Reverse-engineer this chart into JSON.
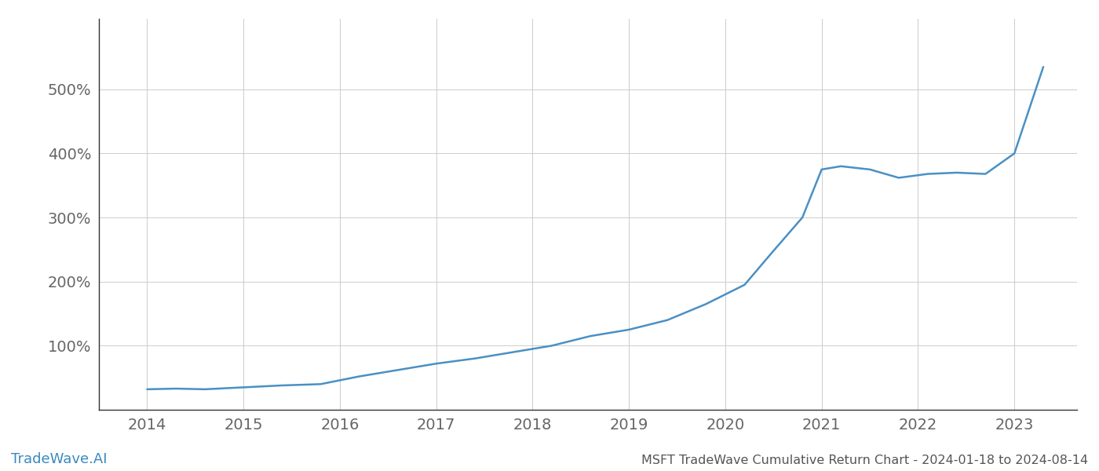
{
  "title": "MSFT TradeWave Cumulative Return Chart - 2024-01-18 to 2024-08-14",
  "watermark": "TradeWave.AI",
  "line_color": "#4a90c4",
  "background_color": "#ffffff",
  "grid_color": "#cccccc",
  "x_years": [
    2014,
    2015,
    2016,
    2017,
    2018,
    2019,
    2020,
    2021,
    2022,
    2023
  ],
  "x_values": [
    2014.0,
    2014.3,
    2014.6,
    2015.0,
    2015.4,
    2015.8,
    2016.2,
    2016.6,
    2017.0,
    2017.4,
    2017.8,
    2018.2,
    2018.6,
    2019.0,
    2019.4,
    2019.8,
    2020.2,
    2020.5,
    2020.8,
    2021.0,
    2021.2,
    2021.5,
    2021.8,
    2022.1,
    2022.4,
    2022.7,
    2023.0,
    2023.3
  ],
  "y_values": [
    32,
    33,
    32,
    35,
    38,
    40,
    52,
    62,
    72,
    80,
    90,
    100,
    115,
    125,
    140,
    165,
    195,
    248,
    300,
    375,
    380,
    375,
    362,
    368,
    370,
    368,
    400,
    535
  ],
  "ylim": [
    0,
    610
  ],
  "xlim": [
    2013.5,
    2023.65
  ],
  "yticks": [
    100,
    200,
    300,
    400,
    500
  ],
  "ytick_labels": [
    "100%",
    "200%",
    "300%",
    "400%",
    "500%"
  ],
  "title_fontsize": 11.5,
  "tick_fontsize": 14,
  "watermark_fontsize": 13,
  "watermark_color": "#3a8abf",
  "line_width": 1.8
}
